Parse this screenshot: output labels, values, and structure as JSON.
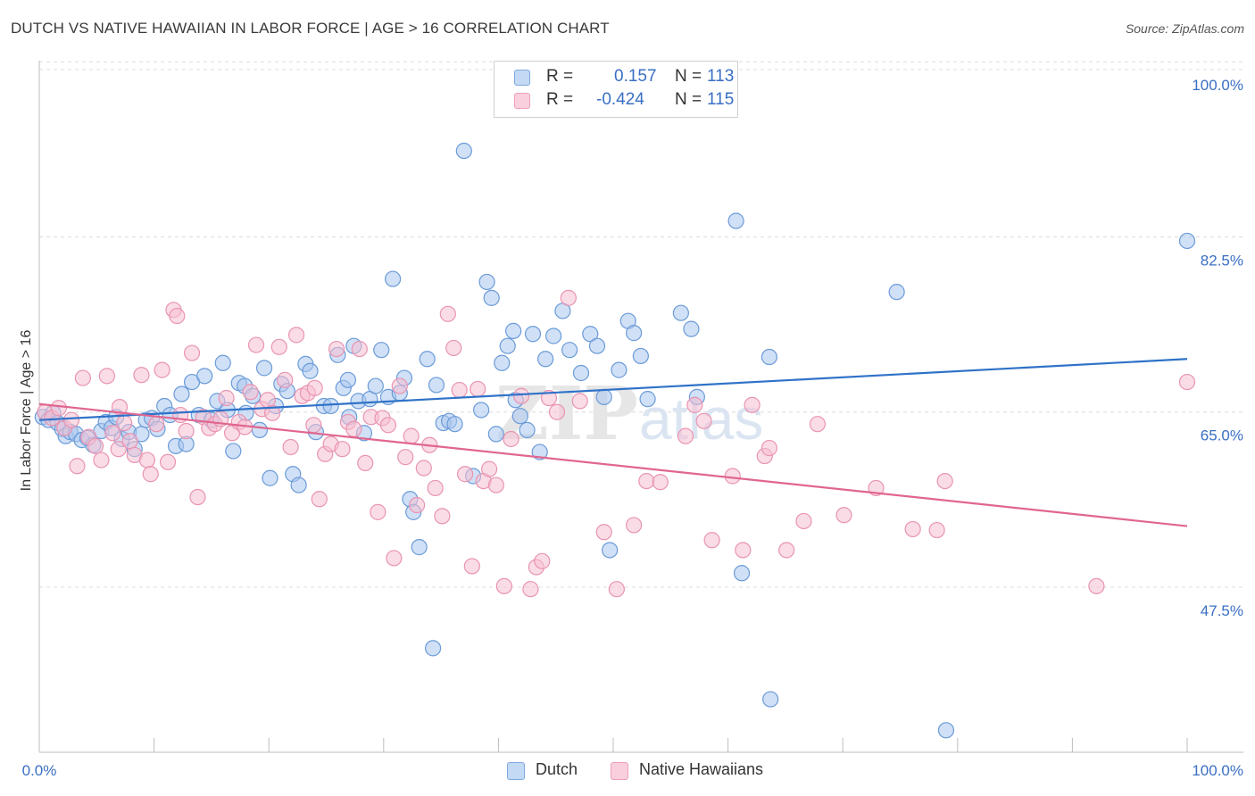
{
  "header": {
    "title": "DUTCH VS NATIVE HAWAIIAN IN LABOR FORCE | AGE > 16 CORRELATION CHART",
    "source": "Source: ZipAtlas.com"
  },
  "legend": {
    "rows": [
      {
        "r_label": "R =",
        "r_value": "0.157",
        "n_label": "N =",
        "n_value": "113"
      },
      {
        "r_label": "R =",
        "r_value": "-0.424",
        "n_label": "N =",
        "n_value": "115"
      }
    ]
  },
  "bottom_legend": {
    "items": [
      {
        "label": "Dutch"
      },
      {
        "label": "Native Hawaiians"
      }
    ]
  },
  "colors": {
    "dutch_fill": "#a9c6ee",
    "dutch_stroke": "#6b9bd8",
    "dutch_line": "#2f72c8",
    "hawaiian_fill": "#f6bfd1",
    "hawaiian_stroke": "#e994b2",
    "hawaiian_line": "#e0668f",
    "tick_label": "#3a6fc4",
    "grid": "#dcdcdc"
  },
  "chart_data": {
    "type": "scatter",
    "title": "DUTCH VS NATIVE HAWAIIAN IN LABOR FORCE | AGE > 16 CORRELATION CHART",
    "xlabel": "",
    "ylabel": "In Labor Force | Age > 16",
    "xlim": [
      0,
      100
    ],
    "ylim": [
      31,
      101
    ],
    "x_tick_labels": [
      "0.0%",
      "100.0%"
    ],
    "y_ticks": [
      47.5,
      65.0,
      82.5,
      100.0
    ],
    "y_tick_labels": [
      "47.5%",
      "65.0%",
      "82.5%",
      "100.0%"
    ],
    "grid": true,
    "legend_position": "top-center",
    "watermark": "ZIPatlas",
    "series": [
      {
        "name": "Dutch",
        "r": 0.157,
        "n": 113,
        "trend": {
          "x": [
            0,
            100
          ],
          "y": [
            64.2,
            70.3
          ]
        },
        "points": [
          [
            0.3,
            64.5
          ],
          [
            0.8,
            64.2
          ],
          [
            1.2,
            64.9
          ],
          [
            1.6,
            63.9
          ],
          [
            2.0,
            63.3
          ],
          [
            2.3,
            62.6
          ],
          [
            2.7,
            63.0
          ],
          [
            3.2,
            62.8
          ],
          [
            3.7,
            62.2
          ],
          [
            4.2,
            62.4
          ],
          [
            4.7,
            61.7
          ],
          [
            5.4,
            63.1
          ],
          [
            5.8,
            64.0
          ],
          [
            6.3,
            63.4
          ],
          [
            6.7,
            64.5
          ],
          [
            7.2,
            62.3
          ],
          [
            7.8,
            63.0
          ],
          [
            8.3,
            61.3
          ],
          [
            8.9,
            62.8
          ],
          [
            9.3,
            64.2
          ],
          [
            9.8,
            64.4
          ],
          [
            10.3,
            63.3
          ],
          [
            10.9,
            65.6
          ],
          [
            11.4,
            64.7
          ],
          [
            11.9,
            61.6
          ],
          [
            12.4,
            66.8
          ],
          [
            12.8,
            61.8
          ],
          [
            13.3,
            68.0
          ],
          [
            13.9,
            64.7
          ],
          [
            14.4,
            68.6
          ],
          [
            15.0,
            64.2
          ],
          [
            15.5,
            66.1
          ],
          [
            16.0,
            69.9
          ],
          [
            16.4,
            65.2
          ],
          [
            16.9,
            61.1
          ],
          [
            17.4,
            67.9
          ],
          [
            17.9,
            67.6
          ],
          [
            18.6,
            66.6
          ],
          [
            19.2,
            63.2
          ],
          [
            19.6,
            69.4
          ],
          [
            20.1,
            58.4
          ],
          [
            20.6,
            65.6
          ],
          [
            21.1,
            67.8
          ],
          [
            21.6,
            67.1
          ],
          [
            22.1,
            58.8
          ],
          [
            22.6,
            57.7
          ],
          [
            23.2,
            69.8
          ],
          [
            23.6,
            69.1
          ],
          [
            24.1,
            63.0
          ],
          [
            24.8,
            65.6
          ],
          [
            25.4,
            65.6
          ],
          [
            26.0,
            70.7
          ],
          [
            26.5,
            67.4
          ],
          [
            26.9,
            68.2
          ],
          [
            27.4,
            71.6
          ],
          [
            27.8,
            66.1
          ],
          [
            28.3,
            62.9
          ],
          [
            28.8,
            66.3
          ],
          [
            29.3,
            67.6
          ],
          [
            29.8,
            71.2
          ],
          [
            30.4,
            66.5
          ],
          [
            30.8,
            78.3
          ],
          [
            31.4,
            66.9
          ],
          [
            31.8,
            68.4
          ],
          [
            32.3,
            56.3
          ],
          [
            32.6,
            55.0
          ],
          [
            33.1,
            51.5
          ],
          [
            33.8,
            70.3
          ],
          [
            34.3,
            41.4
          ],
          [
            34.6,
            67.7
          ],
          [
            35.2,
            63.9
          ],
          [
            35.7,
            64.1
          ],
          [
            36.2,
            63.8
          ],
          [
            37.0,
            91.1
          ],
          [
            37.8,
            58.6
          ],
          [
            38.5,
            65.2
          ],
          [
            39.0,
            78.0
          ],
          [
            39.4,
            76.4
          ],
          [
            39.8,
            62.8
          ],
          [
            40.3,
            69.9
          ],
          [
            40.8,
            71.6
          ],
          [
            41.3,
            73.1
          ],
          [
            41.9,
            64.6
          ],
          [
            42.5,
            63.2
          ],
          [
            43.0,
            72.8
          ],
          [
            43.6,
            61.0
          ],
          [
            44.1,
            70.3
          ],
          [
            44.8,
            72.6
          ],
          [
            45.6,
            75.1
          ],
          [
            46.2,
            71.2
          ],
          [
            47.2,
            68.9
          ],
          [
            48.0,
            72.8
          ],
          [
            48.6,
            71.6
          ],
          [
            49.2,
            66.5
          ],
          [
            49.7,
            51.2
          ],
          [
            50.5,
            69.2
          ],
          [
            51.3,
            74.1
          ],
          [
            51.8,
            72.9
          ],
          [
            52.4,
            70.6
          ],
          [
            53.0,
            66.3
          ],
          [
            55.9,
            74.9
          ],
          [
            56.8,
            73.3
          ],
          [
            57.3,
            66.5
          ],
          [
            60.7,
            84.1
          ],
          [
            61.2,
            48.9
          ],
          [
            63.6,
            70.5
          ],
          [
            63.7,
            36.3
          ],
          [
            74.7,
            77.0
          ],
          [
            79.0,
            33.2
          ],
          [
            100.0,
            82.1
          ],
          [
            41.5,
            66.2
          ],
          [
            27.0,
            64.5
          ],
          [
            18.0,
            64.9
          ]
        ]
      },
      {
        "name": "Native Hawaiians",
        "r": -0.424,
        "n": 115,
        "trend": {
          "x": [
            0,
            100
          ],
          "y": [
            65.8,
            53.6
          ]
        },
        "points": [
          [
            0.5,
            65.0
          ],
          [
            1.1,
            64.4
          ],
          [
            1.7,
            65.4
          ],
          [
            2.2,
            63.4
          ],
          [
            2.8,
            64.2
          ],
          [
            3.3,
            59.6
          ],
          [
            3.8,
            68.4
          ],
          [
            4.3,
            62.5
          ],
          [
            4.9,
            61.6
          ],
          [
            5.4,
            60.2
          ],
          [
            5.9,
            68.6
          ],
          [
            6.4,
            62.9
          ],
          [
            6.9,
            61.3
          ],
          [
            7.4,
            63.9
          ],
          [
            7.9,
            62.1
          ],
          [
            8.3,
            60.7
          ],
          [
            8.9,
            68.7
          ],
          [
            9.4,
            60.2
          ],
          [
            9.7,
            58.8
          ],
          [
            10.2,
            63.8
          ],
          [
            10.7,
            69.2
          ],
          [
            11.2,
            60.0
          ],
          [
            11.7,
            75.2
          ],
          [
            12.0,
            74.6
          ],
          [
            12.3,
            64.7
          ],
          [
            12.8,
            63.1
          ],
          [
            13.3,
            70.9
          ],
          [
            13.8,
            56.5
          ],
          [
            14.3,
            64.5
          ],
          [
            14.8,
            63.4
          ],
          [
            15.3,
            63.8
          ],
          [
            15.8,
            64.3
          ],
          [
            16.3,
            66.4
          ],
          [
            16.8,
            62.9
          ],
          [
            17.4,
            64.0
          ],
          [
            17.9,
            63.5
          ],
          [
            18.4,
            67.0
          ],
          [
            18.9,
            71.7
          ],
          [
            19.4,
            65.3
          ],
          [
            19.9,
            66.2
          ],
          [
            20.3,
            64.9
          ],
          [
            20.9,
            71.5
          ],
          [
            21.4,
            68.2
          ],
          [
            21.9,
            61.5
          ],
          [
            22.4,
            72.7
          ],
          [
            22.9,
            66.6
          ],
          [
            23.4,
            66.9
          ],
          [
            23.9,
            63.7
          ],
          [
            24.4,
            56.3
          ],
          [
            24.9,
            60.8
          ],
          [
            25.4,
            61.8
          ],
          [
            25.9,
            71.3
          ],
          [
            26.4,
            61.3
          ],
          [
            26.9,
            64.0
          ],
          [
            27.4,
            63.3
          ],
          [
            27.9,
            71.3
          ],
          [
            28.4,
            59.9
          ],
          [
            28.9,
            64.5
          ],
          [
            29.5,
            55.0
          ],
          [
            29.9,
            64.4
          ],
          [
            30.4,
            63.7
          ],
          [
            30.9,
            50.4
          ],
          [
            31.4,
            67.6
          ],
          [
            31.9,
            60.5
          ],
          [
            32.4,
            62.6
          ],
          [
            32.9,
            55.7
          ],
          [
            33.5,
            59.4
          ],
          [
            34.0,
            61.7
          ],
          [
            34.5,
            57.4
          ],
          [
            35.1,
            54.6
          ],
          [
            35.6,
            74.8
          ],
          [
            36.1,
            71.4
          ],
          [
            36.6,
            67.2
          ],
          [
            37.1,
            58.8
          ],
          [
            37.7,
            49.6
          ],
          [
            38.2,
            67.3
          ],
          [
            38.7,
            58.1
          ],
          [
            39.2,
            59.3
          ],
          [
            39.8,
            57.7
          ],
          [
            40.5,
            47.6
          ],
          [
            41.1,
            62.3
          ],
          [
            42.0,
            66.6
          ],
          [
            42.8,
            47.3
          ],
          [
            43.3,
            49.5
          ],
          [
            43.8,
            50.1
          ],
          [
            44.4,
            66.4
          ],
          [
            45.1,
            65.0
          ],
          [
            46.1,
            76.4
          ],
          [
            47.1,
            66.1
          ],
          [
            49.2,
            53.0
          ],
          [
            50.3,
            47.3
          ],
          [
            51.8,
            53.7
          ],
          [
            52.9,
            58.1
          ],
          [
            54.1,
            58.0
          ],
          [
            56.3,
            62.6
          ],
          [
            57.1,
            65.7
          ],
          [
            57.9,
            64.1
          ],
          [
            58.6,
            52.2
          ],
          [
            60.4,
            58.6
          ],
          [
            61.3,
            51.2
          ],
          [
            62.1,
            65.7
          ],
          [
            63.2,
            60.6
          ],
          [
            63.6,
            61.4
          ],
          [
            65.1,
            51.2
          ],
          [
            66.6,
            54.1
          ],
          [
            67.8,
            63.8
          ],
          [
            70.1,
            54.7
          ],
          [
            72.9,
            57.4
          ],
          [
            76.1,
            53.3
          ],
          [
            78.2,
            53.2
          ],
          [
            78.9,
            58.1
          ],
          [
            92.1,
            47.6
          ],
          [
            100.0,
            68.0
          ],
          [
            7.0,
            65.5
          ],
          [
            24.0,
            67.4
          ]
        ]
      }
    ]
  }
}
